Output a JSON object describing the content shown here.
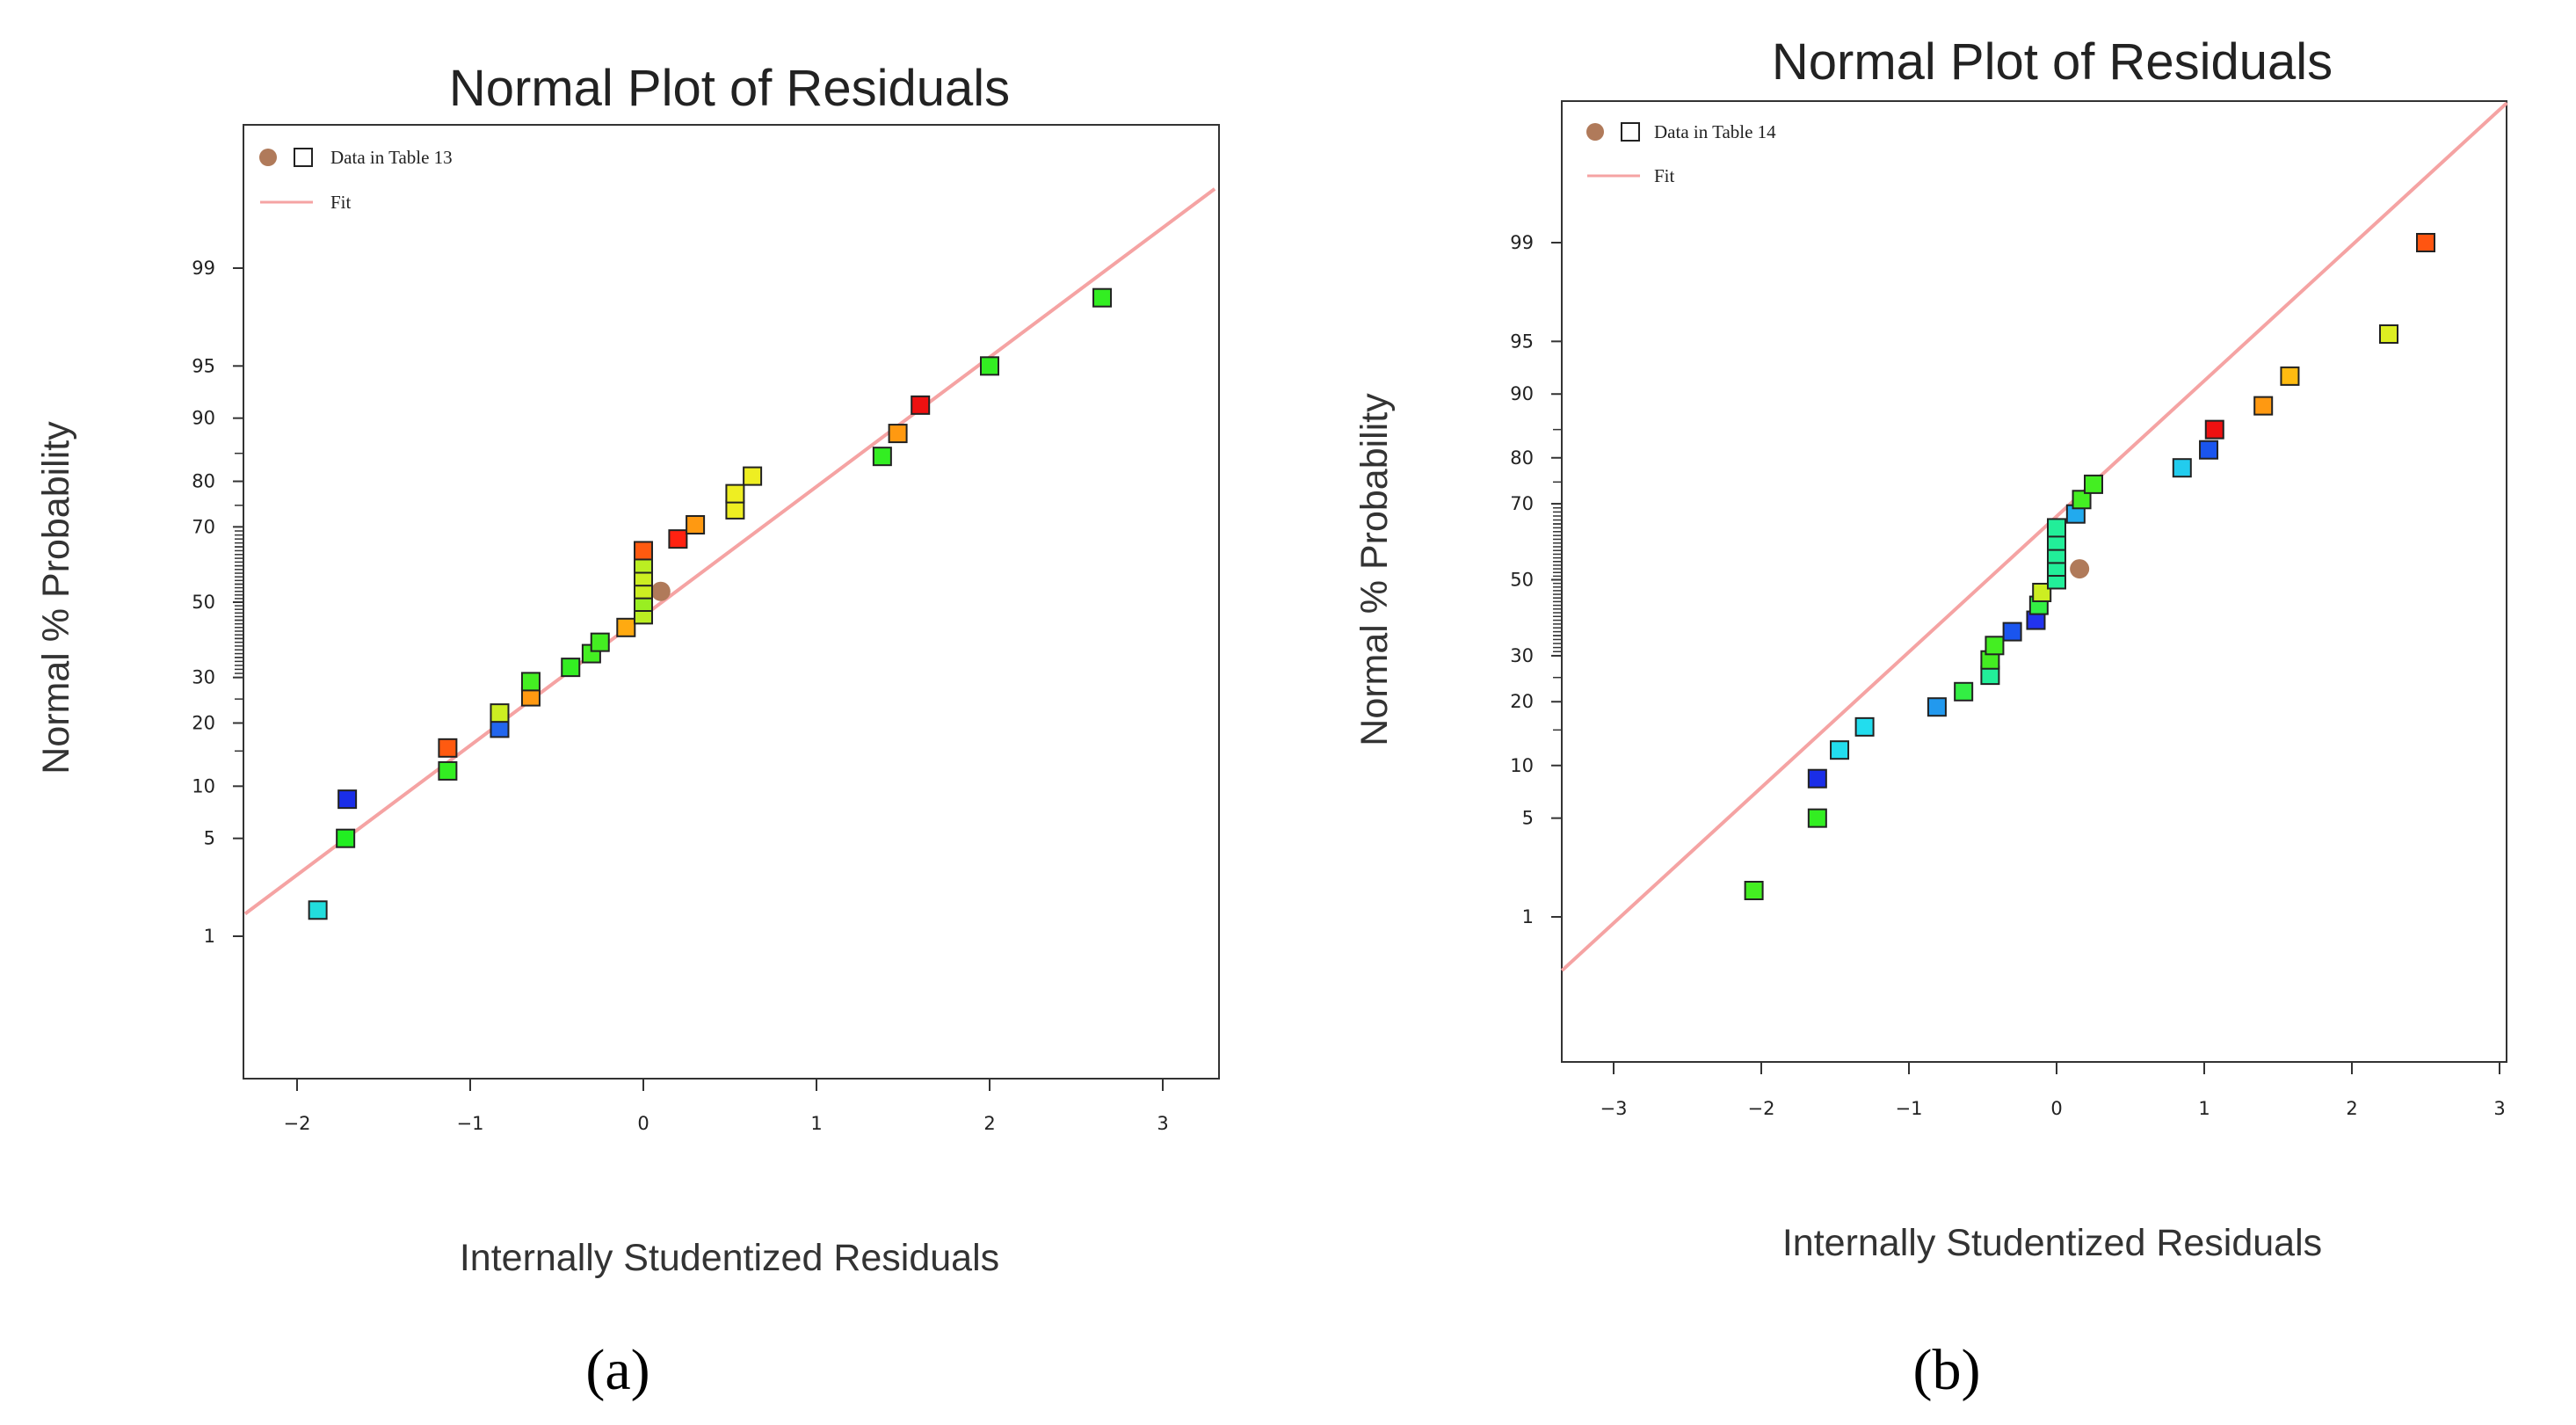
{
  "chart_data": [
    {
      "type": "scatter",
      "panel": "a",
      "caption": "(a)",
      "title": "Normal Plot of Residuals",
      "xlabel": "Internally Studentized Residuals",
      "ylabel": "Normal % Probability",
      "xlim": [
        -2.3,
        3.3
      ],
      "xticks": [
        -2,
        -1,
        0,
        1,
        2,
        3
      ],
      "xtick_labels": [
        "−2",
        "−1",
        "0",
        "1",
        "2",
        "3"
      ],
      "yticks": [
        1,
        5,
        10,
        20,
        30,
        50,
        70,
        80,
        90,
        95,
        99
      ],
      "ytick_labels": [
        "1",
        "5",
        "10",
        "20",
        "30",
        "50",
        "70",
        "80",
        "90",
        "95",
        "99"
      ],
      "legend": {
        "data_label": "Data in Table 13",
        "fit_label": "Fit",
        "position": "top-left"
      },
      "fit_line": {
        "x": [
          -2.3,
          3.3
        ],
        "prob": [
          1.5,
          99.8
        ]
      },
      "centroid_marker": {
        "x": 0.07,
        "prob": 53
      },
      "points": [
        {
          "x": -1.88,
          "prob": 1.6,
          "color": "#22dddd"
        },
        {
          "x": -1.72,
          "prob": 5.0,
          "color": "#22ee22"
        },
        {
          "x": -1.71,
          "prob": 8.5,
          "color": "#1a2ee8"
        },
        {
          "x": -1.13,
          "prob": 12.0,
          "color": "#33ee22"
        },
        {
          "x": -1.13,
          "prob": 15.5,
          "color": "#ff5a10"
        },
        {
          "x": -0.83,
          "prob": 19.0,
          "color": "#2266ee"
        },
        {
          "x": -0.83,
          "prob": 22.0,
          "color": "#ccee22"
        },
        {
          "x": -0.65,
          "prob": 25.5,
          "color": "#ff9911"
        },
        {
          "x": -0.65,
          "prob": 29.0,
          "color": "#44ee22"
        },
        {
          "x": -0.42,
          "prob": 32.5,
          "color": "#33ee22"
        },
        {
          "x": -0.3,
          "prob": 36.0,
          "color": "#44ee22"
        },
        {
          "x": -0.25,
          "prob": 39.0,
          "color": "#44ee22"
        },
        {
          "x": -0.1,
          "prob": 43.0,
          "color": "#ffaa11"
        },
        {
          "x": 0.0,
          "prob": 46.5,
          "color": "#bbee22"
        },
        {
          "x": 0.0,
          "prob": 50.0,
          "color": "#99ee22"
        },
        {
          "x": 0.0,
          "prob": 53.5,
          "color": "#ccee22"
        },
        {
          "x": 0.0,
          "prob": 57.0,
          "color": "#ccee22"
        },
        {
          "x": 0.0,
          "prob": 60.5,
          "color": "#bbee22"
        },
        {
          "x": 0.0,
          "prob": 64.0,
          "color": "#ff5a10"
        },
        {
          "x": 0.2,
          "prob": 67.0,
          "color": "#ff2211"
        },
        {
          "x": 0.3,
          "prob": 70.5,
          "color": "#ff9911"
        },
        {
          "x": 0.53,
          "prob": 74.0,
          "color": "#eeee22"
        },
        {
          "x": 0.53,
          "prob": 77.5,
          "color": "#eeee22"
        },
        {
          "x": 0.63,
          "prob": 81.0,
          "color": "#eeee22"
        },
        {
          "x": 1.38,
          "prob": 84.5,
          "color": "#33ee22"
        },
        {
          "x": 1.47,
          "prob": 88.0,
          "color": "#ff9911"
        },
        {
          "x": 1.6,
          "prob": 91.5,
          "color": "#ee1111"
        },
        {
          "x": 2.0,
          "prob": 95.0,
          "color": "#33ee22"
        },
        {
          "x": 2.65,
          "prob": 98.3,
          "color": "#33ee22"
        }
      ]
    },
    {
      "type": "scatter",
      "panel": "b",
      "caption": "(b)",
      "title": "Normal Plot of Residuals",
      "xlabel": "Internally Studentized Residuals",
      "ylabel": "Normal % Probability",
      "xlim": [
        -3.35,
        3.05
      ],
      "xticks": [
        -3,
        -2,
        -1,
        0,
        1,
        2,
        3
      ],
      "xtick_labels": [
        "−3",
        "−2",
        "−1",
        "0",
        "1",
        "2",
        "3"
      ],
      "yticks": [
        1,
        5,
        10,
        20,
        30,
        50,
        70,
        80,
        90,
        95,
        99
      ],
      "ytick_labels": [
        "1",
        "5",
        "10",
        "20",
        "30",
        "50",
        "70",
        "80",
        "90",
        "95",
        "99"
      ],
      "legend": {
        "data_label": "Data in Table 14",
        "fit_label": "Fit",
        "position": "top-left"
      },
      "fit_line": {
        "x": [
          -3.35,
          3.05
        ],
        "prob": [
          0.35,
          99.95
        ]
      },
      "centroid_marker": {
        "x": 0.12,
        "prob": 53
      },
      "points": [
        {
          "x": -2.05,
          "prob": 1.6,
          "color": "#44ee22"
        },
        {
          "x": -1.62,
          "prob": 5.0,
          "color": "#33ee22"
        },
        {
          "x": -1.62,
          "prob": 8.5,
          "color": "#1a2ee8"
        },
        {
          "x": -1.47,
          "prob": 12.0,
          "color": "#22ddee"
        },
        {
          "x": -1.3,
          "prob": 15.5,
          "color": "#22ddee"
        },
        {
          "x": -0.81,
          "prob": 19.0,
          "color": "#2299ee"
        },
        {
          "x": -0.63,
          "prob": 22.0,
          "color": "#33ee44"
        },
        {
          "x": -0.45,
          "prob": 25.5,
          "color": "#22ee99"
        },
        {
          "x": -0.45,
          "prob": 29.0,
          "color": "#44ee22"
        },
        {
          "x": -0.42,
          "prob": 32.5,
          "color": "#44ee22"
        },
        {
          "x": -0.3,
          "prob": 36.0,
          "color": "#1a55ee"
        },
        {
          "x": -0.14,
          "prob": 39.0,
          "color": "#2233ee"
        },
        {
          "x": -0.12,
          "prob": 43.0,
          "color": "#33ee44"
        },
        {
          "x": -0.1,
          "prob": 46.5,
          "color": "#ccee22"
        },
        {
          "x": 0.0,
          "prob": 50.0,
          "color": "#22ee99"
        },
        {
          "x": 0.0,
          "prob": 53.5,
          "color": "#22ee99"
        },
        {
          "x": 0.0,
          "prob": 57.0,
          "color": "#22ee99"
        },
        {
          "x": 0.0,
          "prob": 60.5,
          "color": "#22ee99"
        },
        {
          "x": 0.0,
          "prob": 64.0,
          "color": "#22ee99"
        },
        {
          "x": 0.13,
          "prob": 67.5,
          "color": "#22aaee"
        },
        {
          "x": 0.17,
          "prob": 71.0,
          "color": "#44ee22"
        },
        {
          "x": 0.25,
          "prob": 74.5,
          "color": "#44ee22"
        },
        {
          "x": 0.85,
          "prob": 78.0,
          "color": "#22ccee"
        },
        {
          "x": 1.03,
          "prob": 81.5,
          "color": "#1a55ee"
        },
        {
          "x": 1.07,
          "prob": 85.0,
          "color": "#ee1111"
        },
        {
          "x": 1.4,
          "prob": 88.5,
          "color": "#ff9911"
        },
        {
          "x": 1.58,
          "prob": 92.0,
          "color": "#ffbb11"
        },
        {
          "x": 2.25,
          "prob": 95.5,
          "color": "#ddee22"
        },
        {
          "x": 2.5,
          "prob": 99.0,
          "color": "#ff5511"
        }
      ]
    }
  ],
  "colors": {
    "fit_line": "#f5a3a3",
    "centroid": "#b07a5a",
    "axis": "#333333",
    "background": "#ffffff"
  }
}
